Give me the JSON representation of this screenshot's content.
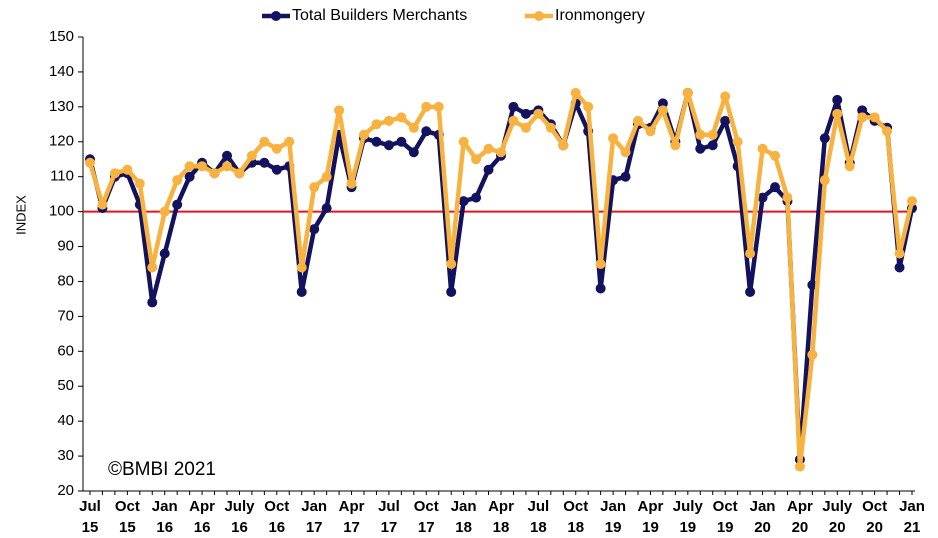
{
  "chart_data": {
    "type": "line",
    "y_label": "INDEX",
    "annotation": "©BMBI 2021",
    "categories": [
      [
        "Jul",
        "15"
      ],
      null,
      null,
      [
        "Oct",
        "15"
      ],
      null,
      null,
      [
        "Jan",
        "16"
      ],
      null,
      null,
      [
        "Apr",
        "16"
      ],
      null,
      null,
      [
        "July",
        "16"
      ],
      null,
      null,
      [
        "Oct",
        "16"
      ],
      null,
      null,
      [
        "Jan",
        "17"
      ],
      null,
      null,
      [
        "Apr",
        "17"
      ],
      null,
      null,
      [
        "Jul",
        "17"
      ],
      null,
      null,
      [
        "Oct",
        "17"
      ],
      null,
      null,
      [
        "Jan",
        "18"
      ],
      null,
      null,
      [
        "Apr",
        "18"
      ],
      null,
      null,
      [
        "Jul",
        "18"
      ],
      null,
      null,
      [
        "Oct",
        "18"
      ],
      null,
      null,
      [
        "Jan",
        "19"
      ],
      null,
      null,
      [
        "Apr",
        "19"
      ],
      null,
      null,
      [
        "July",
        "19"
      ],
      null,
      null,
      [
        "Oct",
        "19"
      ],
      null,
      null,
      [
        "Jan",
        "20"
      ],
      null,
      null,
      [
        "Apr",
        "20"
      ],
      null,
      null,
      [
        "July",
        "20"
      ],
      null,
      null,
      [
        "Oct",
        "20"
      ],
      null,
      null,
      [
        "Jan",
        "21"
      ]
    ],
    "series": [
      {
        "name": "Total Builders Merchants",
        "color": "#13125e",
        "values": [
          115,
          101,
          110,
          111,
          102,
          74,
          88,
          102,
          110,
          114,
          111,
          116,
          111,
          114,
          114,
          112,
          113,
          77,
          95,
          101,
          122,
          107,
          121,
          120,
          119,
          120,
          117,
          123,
          122,
          77,
          103,
          104,
          112,
          116,
          130,
          128,
          129,
          125,
          119,
          131,
          123,
          78,
          109,
          110,
          125,
          124,
          131,
          120,
          134,
          118,
          119,
          126,
          113,
          77,
          104,
          107,
          103,
          29,
          79,
          121,
          132,
          114,
          129,
          126,
          124,
          84,
          101
        ]
      },
      {
        "name": "Ironmongery",
        "color": "#f7b23f",
        "values": [
          114,
          102,
          111,
          112,
          108,
          84,
          100,
          109,
          113,
          113,
          111,
          113,
          111,
          116,
          120,
          118,
          120,
          84,
          107,
          110,
          129,
          108,
          122,
          125,
          126,
          127,
          124,
          130,
          130,
          85,
          120,
          115,
          118,
          117,
          126,
          124,
          128,
          124,
          119,
          134,
          130,
          85,
          121,
          117,
          126,
          123,
          129,
          119,
          134,
          122,
          122,
          133,
          120,
          88,
          118,
          116,
          104,
          27,
          59,
          109,
          128,
          113,
          127,
          127,
          123,
          88,
          103
        ]
      }
    ],
    "ylim": [
      20,
      150
    ],
    "yticks": [
      20,
      30,
      40,
      50,
      60,
      70,
      80,
      90,
      100,
      110,
      120,
      130,
      140,
      150
    ],
    "reference_line": {
      "value": 100,
      "color": "#e8141b"
    },
    "legend": "top"
  }
}
